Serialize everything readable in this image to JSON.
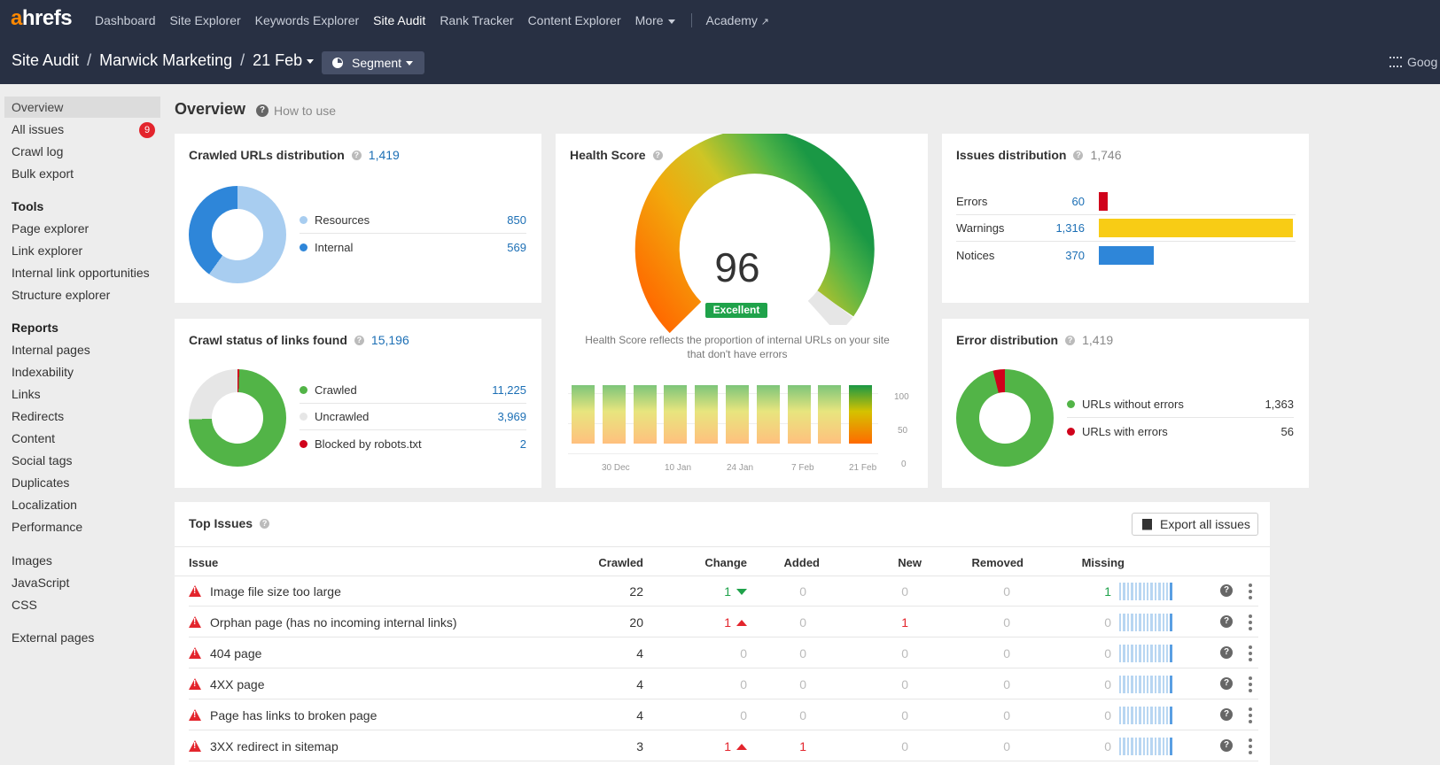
{
  "nav": {
    "logo_a": "a",
    "logo_rest": "hrefs",
    "items": [
      "Dashboard",
      "Site Explorer",
      "Keywords Explorer",
      "Site Audit",
      "Rank Tracker",
      "Content Explorer",
      "More"
    ],
    "academy": "Academy",
    "active": "Site Audit"
  },
  "breadcrumb": {
    "section": "Site Audit",
    "project": "Marwick Marketing",
    "date": "21 Feb",
    "segment_label": "Segment",
    "right_label": "Goog"
  },
  "sidebar": {
    "items": [
      "Overview",
      "All issues",
      "Crawl log",
      "Bulk export"
    ],
    "all_issues_badge": "9",
    "tools_heading": "Tools",
    "tools": [
      "Page explorer",
      "Link explorer",
      "Internal link opportunities",
      "Structure explorer"
    ],
    "reports_heading": "Reports",
    "reports": [
      "Internal pages",
      "Indexability",
      "Links",
      "Redirects",
      "Content",
      "Social tags",
      "Duplicates",
      "Localization",
      "Performance"
    ],
    "resources": [
      "Images",
      "JavaScript",
      "CSS"
    ],
    "external": [
      "External pages"
    ]
  },
  "page": {
    "title": "Overview",
    "how_to_use": "How to use"
  },
  "crawled_urls": {
    "title": "Crawled URLs distribution",
    "total": "1,419",
    "rows": [
      {
        "label": "Resources",
        "value": "850",
        "color": "#a8cdf0"
      },
      {
        "label": "Internal",
        "value": "569",
        "color": "#2e86d9"
      }
    ]
  },
  "crawl_status": {
    "title": "Crawl status of links found",
    "total": "15,196",
    "rows": [
      {
        "label": "Crawled",
        "value": "11,225",
        "color": "#52b447"
      },
      {
        "label": "Uncrawled",
        "value": "3,969",
        "color": "#e6e6e6"
      },
      {
        "label": "Blocked by robots.txt",
        "value": "2",
        "color": "#d0021b"
      }
    ]
  },
  "health": {
    "title": "Health Score",
    "score": "96",
    "rating": "Excellent",
    "description": "Health Score reflects the proportion of internal URLs on your site that don't have errors",
    "y_ticks": [
      "100",
      "50",
      "0"
    ],
    "x_labels": [
      "30 Dec",
      "10 Jan",
      "24 Jan",
      "7 Feb",
      "21 Feb"
    ]
  },
  "issues_dist": {
    "title": "Issues distribution",
    "total": "1,746",
    "rows": [
      {
        "label": "Errors",
        "value": "60",
        "count": 60,
        "color": "#d0021b"
      },
      {
        "label": "Warnings",
        "value": "1,316",
        "count": 1316,
        "color": "#f8cc15"
      },
      {
        "label": "Notices",
        "value": "370",
        "count": 370,
        "color": "#2e86d9"
      }
    ]
  },
  "error_dist": {
    "title": "Error distribution",
    "total": "1,419",
    "rows": [
      {
        "label": "URLs without errors",
        "value": "1,363",
        "color": "#52b447"
      },
      {
        "label": "URLs with errors",
        "value": "56",
        "color": "#d0021b"
      }
    ]
  },
  "top_issues": {
    "title": "Top Issues",
    "export_label": "Export all issues",
    "columns": [
      "Issue",
      "Crawled",
      "Change",
      "Added",
      "New",
      "Removed",
      "Missing"
    ],
    "rows": [
      {
        "issue": "Image file size too large",
        "crawled": "22",
        "change": "1",
        "change_dir": "down",
        "added": "0",
        "new": "0",
        "removed": "0",
        "missing": "1"
      },
      {
        "issue": "Orphan page (has no incoming internal links)",
        "crawled": "20",
        "change": "1",
        "change_dir": "up",
        "added": "0",
        "new": "1",
        "removed": "0",
        "missing": "0"
      },
      {
        "issue": "404 page",
        "crawled": "4",
        "change": "0",
        "change_dir": "none",
        "added": "0",
        "new": "0",
        "removed": "0",
        "missing": "0"
      },
      {
        "issue": "4XX page",
        "crawled": "4",
        "change": "0",
        "change_dir": "none",
        "added": "0",
        "new": "0",
        "removed": "0",
        "missing": "0"
      },
      {
        "issue": "Page has links to broken page",
        "crawled": "4",
        "change": "0",
        "change_dir": "none",
        "added": "0",
        "new": "0",
        "removed": "0",
        "missing": "0"
      },
      {
        "issue": "3XX redirect in sitemap",
        "crawled": "3",
        "change": "1",
        "change_dir": "up",
        "added": "1",
        "new": "0",
        "removed": "0",
        "missing": "0"
      }
    ]
  }
}
